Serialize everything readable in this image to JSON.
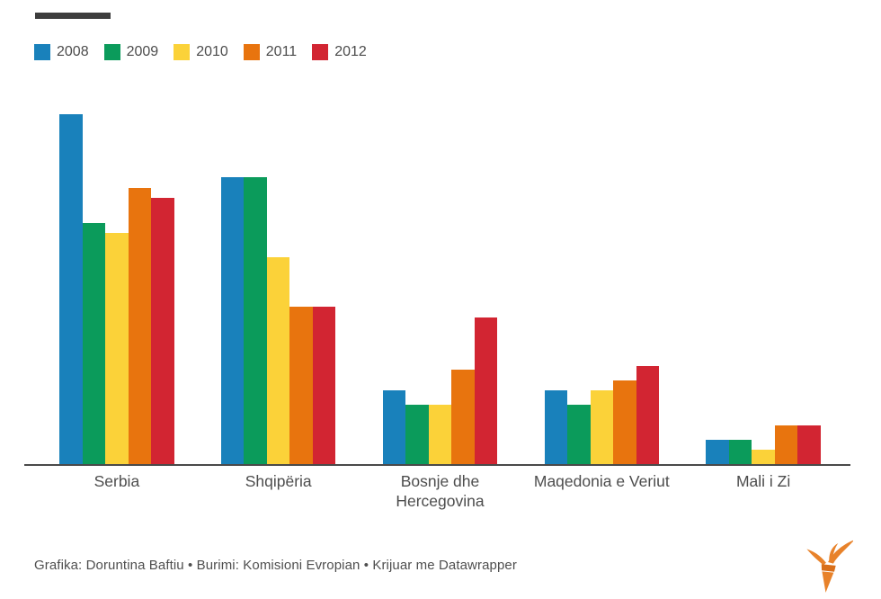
{
  "header": {
    "title_placeholder_color": "#3d3d3d"
  },
  "legend": {
    "items": [
      {
        "label": "2008",
        "color": "#1981bb"
      },
      {
        "label": "2009",
        "color": "#0b9b5b"
      },
      {
        "label": "2010",
        "color": "#fbd239"
      },
      {
        "label": "2011",
        "color": "#e8740e"
      },
      {
        "label": "2012",
        "color": "#d22532"
      }
    ]
  },
  "chart_data": {
    "type": "bar",
    "title": "",
    "categories": [
      "Serbia",
      "Shqipëria",
      "Bosnje dhe Hercegovina",
      "Maqedonia e Veriut",
      "Mali i Zi"
    ],
    "series": [
      {
        "name": "2008",
        "color": "#1981bb",
        "values": [
          100,
          82,
          21,
          21,
          7
        ]
      },
      {
        "name": "2009",
        "color": "#0b9b5b",
        "values": [
          69,
          82,
          17,
          17,
          7
        ]
      },
      {
        "name": "2010",
        "color": "#fbd239",
        "values": [
          66,
          59,
          17,
          21,
          4
        ]
      },
      {
        "name": "2011",
        "color": "#e8740e",
        "values": [
          79,
          45,
          27,
          24,
          11
        ]
      },
      {
        "name": "2012",
        "color": "#d22532",
        "values": [
          76,
          45,
          42,
          28,
          11
        ]
      }
    ],
    "xlabel": "",
    "ylabel": "",
    "ylim": [
      0,
      100
    ],
    "y_axis_visible": false,
    "gridlines": false,
    "legend_position": "top-left",
    "baseline_color": "#4a4a4a",
    "value_scale_note": "no y-axis shown; values are relative, tallest bar (Serbia 2008) = 100"
  },
  "footer": {
    "credit": "Grafika: Doruntina Baftiu • Burimi: Komisioni Evropian • Krijuar me Datawrapper",
    "logo_color": "#e8822a",
    "logo_band_color": "#d96f1a"
  }
}
